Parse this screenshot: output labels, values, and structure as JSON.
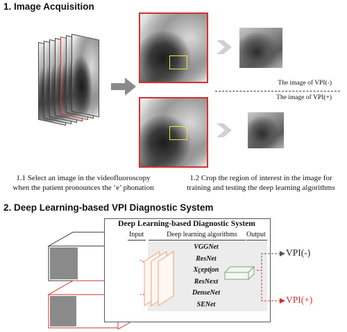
{
  "section1": {
    "heading": "1. Image Acquisition"
  },
  "section2": {
    "heading": "2. Deep Learning-based VPI Diagnostic System"
  },
  "separator": {
    "upper_label": "The image of VPI(-)",
    "lower_label": "The image of VPI(+)"
  },
  "captions": {
    "left": [
      "1.1 Select an image in the videofluoroscopy",
      "when the patient pronounces the ‘e’ phonation"
    ],
    "right": [
      "1.2 Crop the region of interest in the image for",
      "training and testing the deep learning algorithms"
    ]
  },
  "system": {
    "title": "Deep Learning-based Diagnostic System",
    "input_label": "Input",
    "algorithms_label": "Deep learning algorithms",
    "output_label": "Output",
    "models": [
      "VGGNet",
      "ResNet",
      "Xception",
      "ResNext",
      "DenseNet",
      "SENet"
    ],
    "outputs": [
      "VPI(-)",
      "VPI(+)"
    ]
  },
  "colors": {
    "accent_red": "#d62f2f",
    "arrow_gray": "#8a8a8a",
    "output_arrow_gray": "#555555",
    "algo_panel": "#ececec",
    "cnn_orange": "#e9a27c",
    "fc_green": "#7fa07f",
    "roi_yellow": "#e6e64a"
  }
}
